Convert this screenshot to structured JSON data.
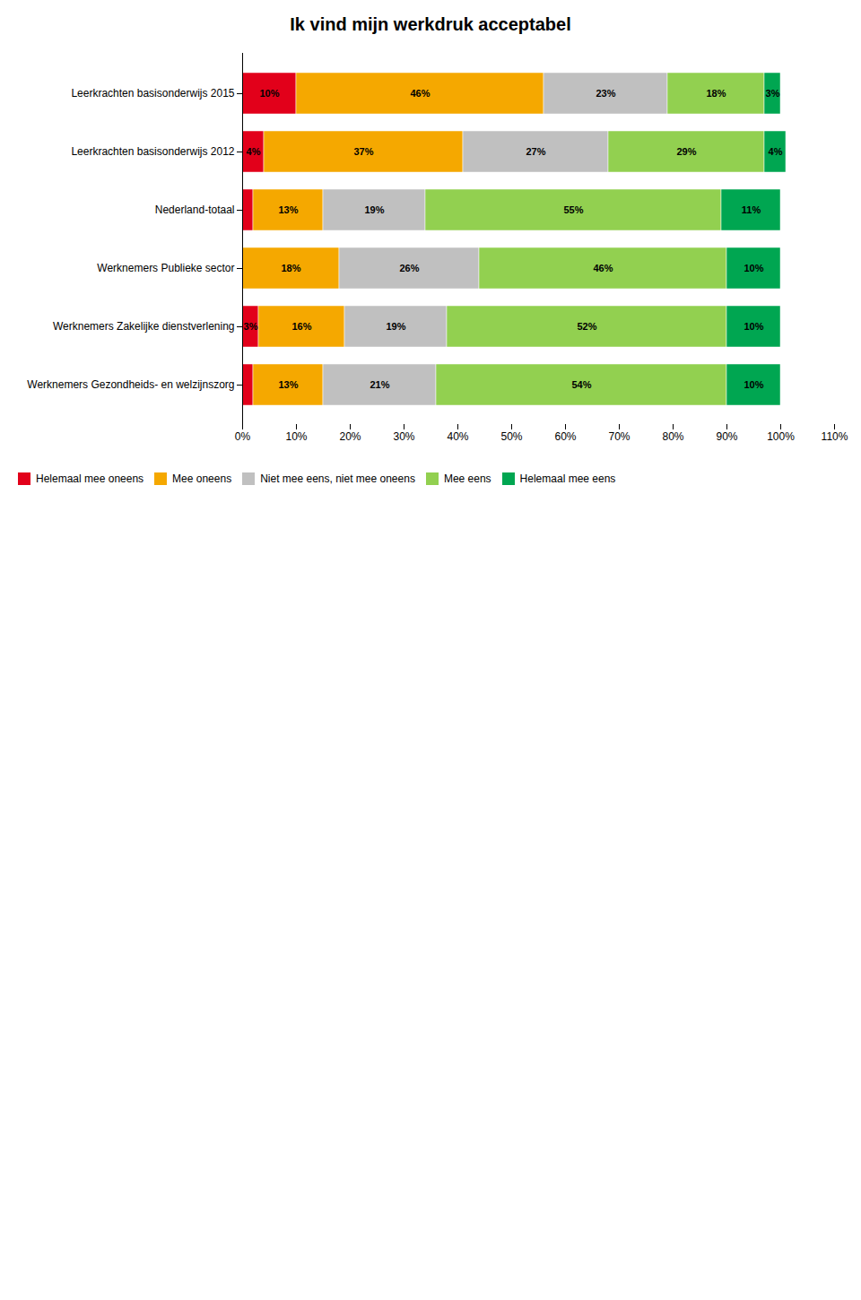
{
  "chart_data": {
    "type": "bar",
    "title": "Ik vind mijn werkdruk acceptabel",
    "orientation": "horizontal",
    "stacked": true,
    "data_labels": true,
    "legend": "bottom",
    "grid": false,
    "categories": [
      "Leerkrachten basisonderwijs 2015",
      "Leerkrachten basisonderwijs 2012",
      "Nederland-totaal",
      "Werknemers Publieke sector",
      "Werknemers Zakelijke dienstverlening",
      "Werknemers Gezondheids- en welzijnszorg"
    ],
    "series": [
      {
        "name": "Helemaal mee oneens",
        "color": "#e2001a",
        "values": [
          10,
          4,
          2,
          0,
          3,
          2
        ],
        "value_labels": [
          "10%",
          "4%",
          null,
          null,
          "3%",
          null
        ]
      },
      {
        "name": "Mee oneens",
        "color": "#f5a800",
        "values": [
          46,
          37,
          13,
          18,
          16,
          13
        ],
        "value_labels": [
          "46%",
          "37%",
          "13%",
          "18%",
          "16%",
          "13%"
        ]
      },
      {
        "name": "Niet mee eens, niet mee oneens",
        "color": "#c0c0c0",
        "values": [
          23,
          27,
          19,
          26,
          19,
          21
        ],
        "value_labels": [
          "23%",
          "27%",
          "19%",
          "26%",
          "19%",
          "21%"
        ]
      },
      {
        "name": "Mee eens",
        "color": "#92d050",
        "values": [
          18,
          29,
          55,
          46,
          52,
          54
        ],
        "value_labels": [
          "18%",
          "29%",
          "55%",
          "46%",
          "52%",
          "54%"
        ]
      },
      {
        "name": "Helemaal mee eens",
        "color": "#00a651",
        "values": [
          3,
          4,
          11,
          10,
          10,
          10
        ],
        "value_labels": [
          "3%",
          "4%",
          "11%",
          "10%",
          "10%",
          "10%"
        ]
      }
    ],
    "xlim": [
      0,
      110
    ],
    "xticks": [
      {
        "value": 0,
        "label": "0%"
      },
      {
        "value": 10,
        "label": "10%"
      },
      {
        "value": 20,
        "label": "20%"
      },
      {
        "value": 30,
        "label": "30%"
      },
      {
        "value": 40,
        "label": "40%"
      },
      {
        "value": 50,
        "label": "50%"
      },
      {
        "value": 60,
        "label": "60%"
      },
      {
        "value": 70,
        "label": "70%"
      },
      {
        "value": 80,
        "label": "80%"
      },
      {
        "value": 90,
        "label": "90%"
      },
      {
        "value": 100,
        "label": "100%"
      },
      {
        "value": 110,
        "label": "110%"
      }
    ]
  }
}
